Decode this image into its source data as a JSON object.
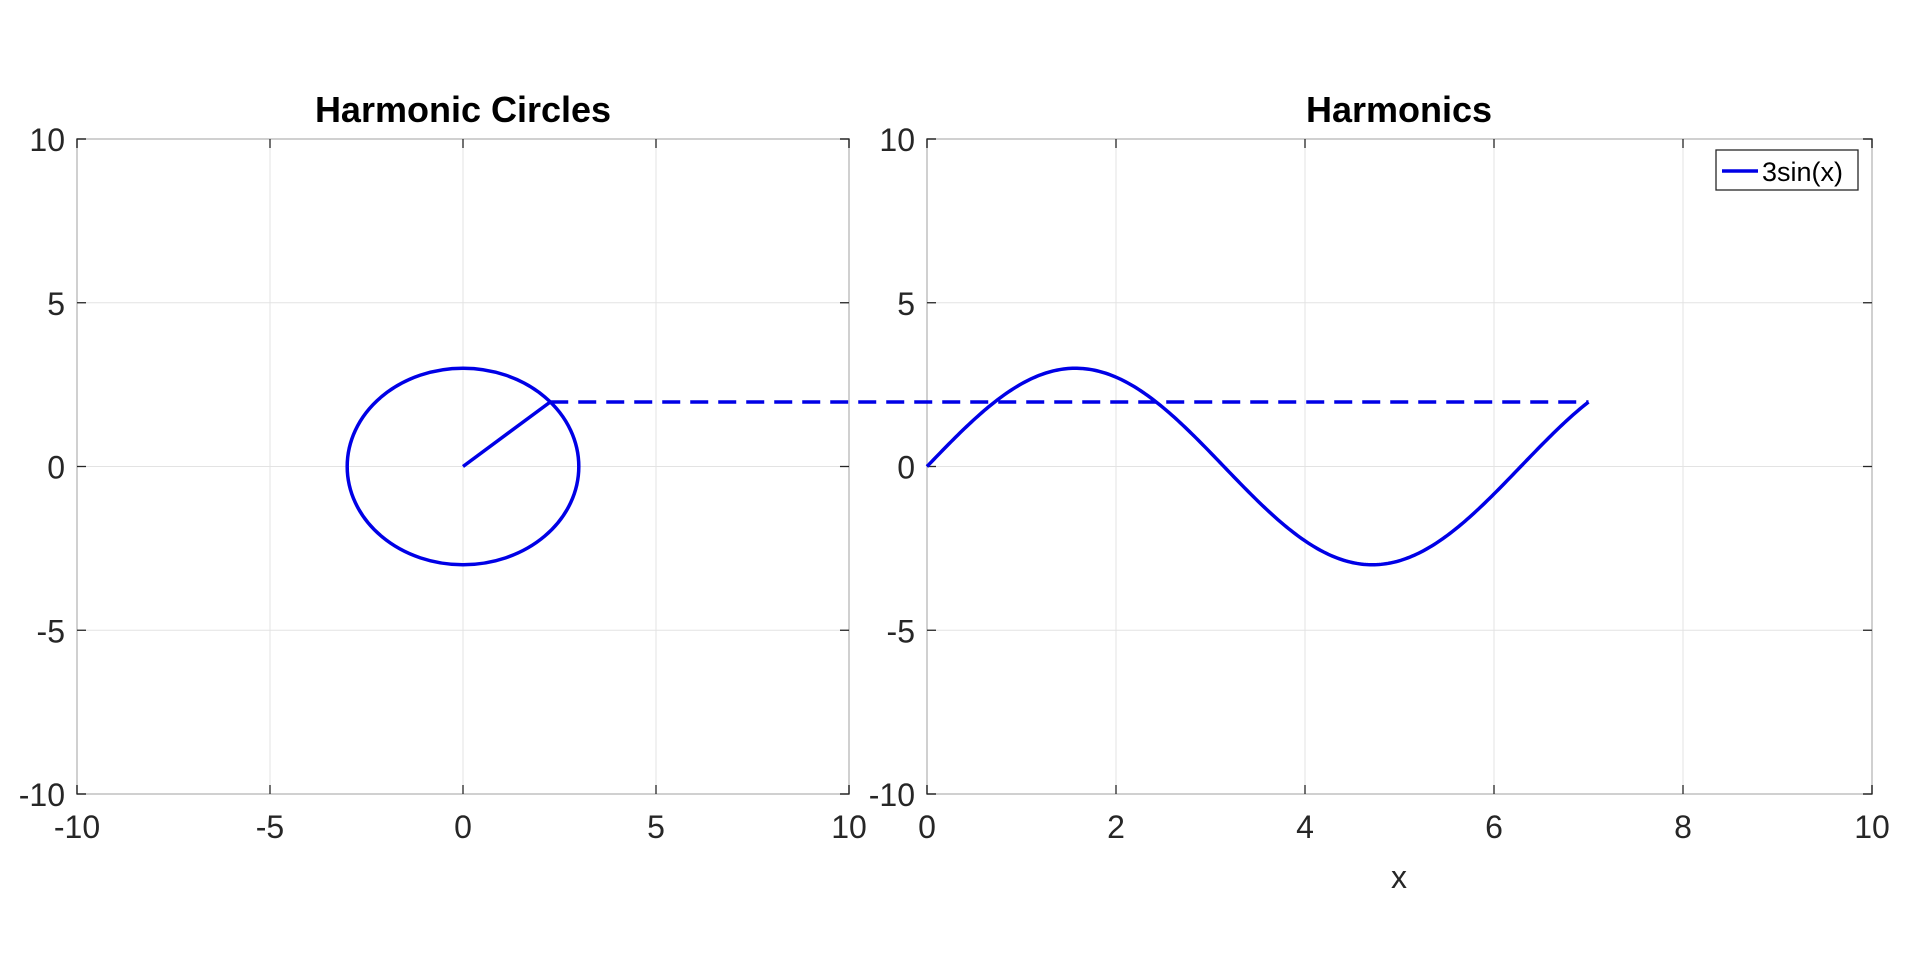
{
  "chart_data": [
    {
      "type": "line",
      "title": "Harmonic Circles",
      "xlabel": "",
      "ylabel": "",
      "xlim": [
        -10,
        10
      ],
      "ylim": [
        -10,
        10
      ],
      "xticks": [
        -10,
        -5,
        0,
        5,
        10
      ],
      "yticks": [
        -10,
        -5,
        0,
        5,
        10
      ],
      "grid": true,
      "color": "#0000e6",
      "series": [
        {
          "kind": "circle",
          "center": [
            0,
            0
          ],
          "radius": 3
        },
        {
          "kind": "radius-line",
          "x": [
            0,
            2.26
          ],
          "y": [
            0,
            1.97
          ]
        }
      ]
    },
    {
      "type": "line",
      "title": "Harmonics",
      "xlabel": "x",
      "ylabel": "",
      "xlim": [
        0,
        10
      ],
      "ylim": [
        -10,
        10
      ],
      "xticks": [
        0,
        2,
        4,
        6,
        8,
        10
      ],
      "yticks": [
        -10,
        -5,
        0,
        5,
        10
      ],
      "grid": true,
      "legend_position": "top-right",
      "color": "#0000e6",
      "series": [
        {
          "name": "3sin(x)",
          "function": "3*sin(x)",
          "amplitude": 3,
          "x_range": [
            0,
            7
          ]
        }
      ]
    }
  ],
  "connector": {
    "style": "dashed",
    "color": "#0000e6",
    "y": 1.97,
    "from_x_left_axes": 2.26,
    "to_x_right_axes": 7
  }
}
